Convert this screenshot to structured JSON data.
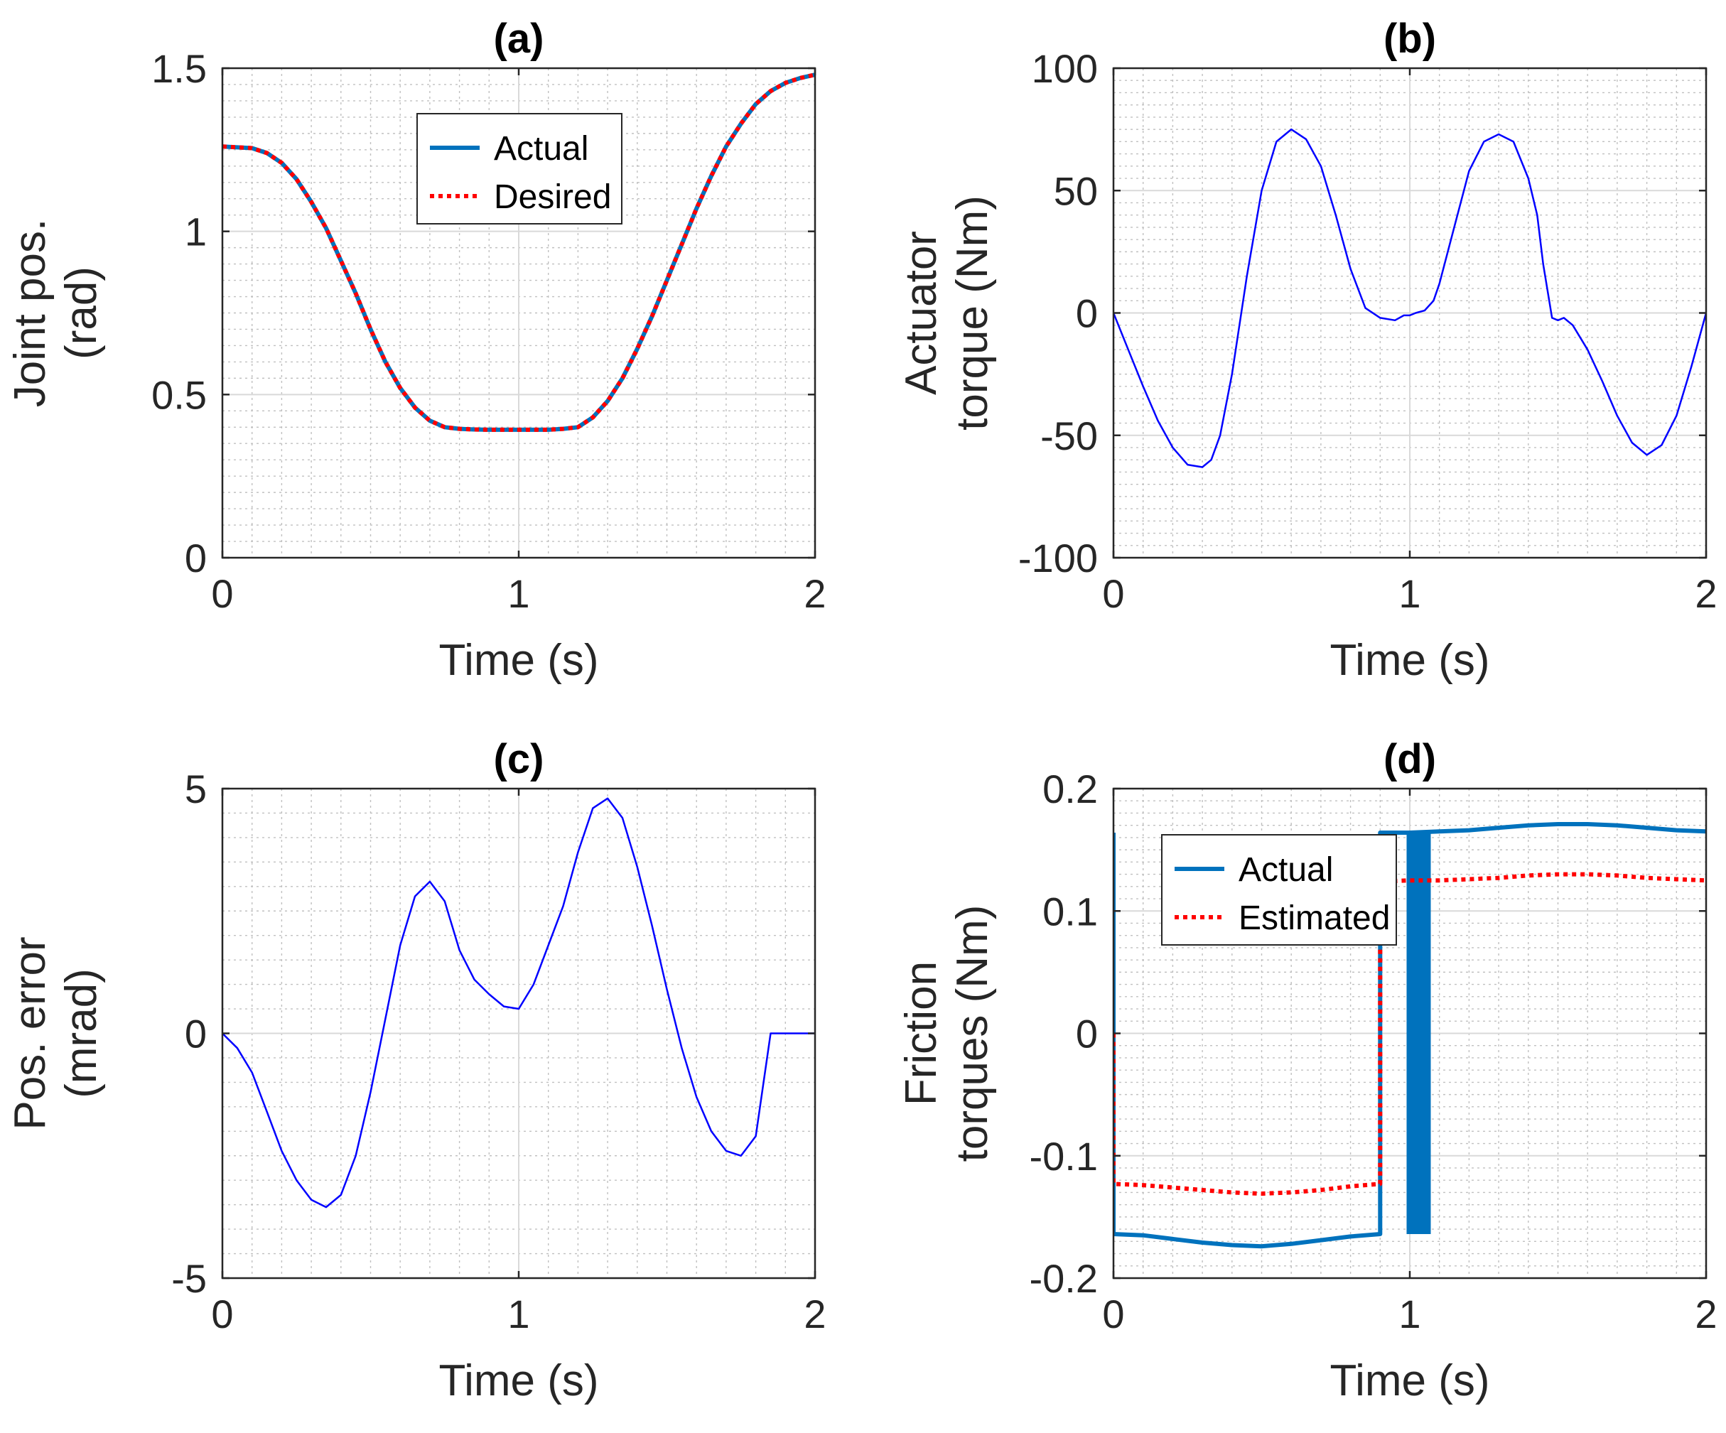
{
  "chart_data": [
    {
      "id": "a",
      "type": "line",
      "title": "(a)",
      "xlabel": "Time (s)",
      "ylabel": [
        "Joint pos.",
        "(rad)"
      ],
      "xlim": [
        0,
        2
      ],
      "ylim": [
        0,
        1.5
      ],
      "xticks": [
        0,
        1,
        2
      ],
      "xtick_labels": [
        "0",
        "1",
        "2"
      ],
      "yticks": [
        0,
        0.5,
        1,
        1.5
      ],
      "ytick_labels": [
        "0",
        "0.5",
        "1",
        "1.5"
      ],
      "grid": true,
      "legend": {
        "placement": "top-center",
        "entries": [
          "Actual",
          "Desired"
        ]
      },
      "series": [
        {
          "name": "Actual",
          "color": "#0072BD",
          "style": "solid",
          "width": 6,
          "x": [
            0,
            0.1,
            0.15,
            0.2,
            0.25,
            0.3,
            0.35,
            0.4,
            0.45,
            0.5,
            0.55,
            0.6,
            0.65,
            0.7,
            0.75,
            0.8,
            0.85,
            0.9,
            0.95,
            1.0,
            1.05,
            1.1,
            1.15,
            1.2,
            1.25,
            1.3,
            1.35,
            1.4,
            1.45,
            1.5,
            1.55,
            1.6,
            1.65,
            1.7,
            1.75,
            1.8,
            1.85,
            1.9,
            1.95,
            2.0
          ],
          "y": [
            1.26,
            1.255,
            1.24,
            1.21,
            1.16,
            1.09,
            1.01,
            0.91,
            0.81,
            0.7,
            0.6,
            0.52,
            0.46,
            0.42,
            0.4,
            0.395,
            0.393,
            0.392,
            0.392,
            0.392,
            0.392,
            0.392,
            0.395,
            0.4,
            0.43,
            0.48,
            0.55,
            0.64,
            0.74,
            0.85,
            0.96,
            1.07,
            1.17,
            1.26,
            1.33,
            1.39,
            1.43,
            1.455,
            1.47,
            1.48
          ]
        },
        {
          "name": "Desired",
          "color": "#FF0000",
          "style": "dotted",
          "width": 6,
          "x": [
            0,
            0.1,
            0.15,
            0.2,
            0.25,
            0.3,
            0.35,
            0.4,
            0.45,
            0.5,
            0.55,
            0.6,
            0.65,
            0.7,
            0.75,
            0.8,
            0.85,
            0.9,
            0.95,
            1.0,
            1.05,
            1.1,
            1.15,
            1.2,
            1.25,
            1.3,
            1.35,
            1.4,
            1.45,
            1.5,
            1.55,
            1.6,
            1.65,
            1.7,
            1.75,
            1.8,
            1.85,
            1.9,
            1.95,
            2.0
          ],
          "y": [
            1.26,
            1.255,
            1.24,
            1.21,
            1.16,
            1.09,
            1.01,
            0.91,
            0.81,
            0.7,
            0.6,
            0.52,
            0.46,
            0.42,
            0.4,
            0.395,
            0.393,
            0.392,
            0.392,
            0.392,
            0.392,
            0.392,
            0.395,
            0.4,
            0.43,
            0.48,
            0.55,
            0.64,
            0.74,
            0.85,
            0.96,
            1.07,
            1.17,
            1.26,
            1.33,
            1.39,
            1.43,
            1.455,
            1.47,
            1.48
          ]
        }
      ]
    },
    {
      "id": "b",
      "type": "line",
      "title": "(b)",
      "xlabel": "Time (s)",
      "ylabel": [
        "Actuator",
        "torque (Nm)"
      ],
      "xlim": [
        0,
        2
      ],
      "ylim": [
        -100,
        100
      ],
      "xticks": [
        0,
        1,
        2
      ],
      "xtick_labels": [
        "0",
        "1",
        "2"
      ],
      "yticks": [
        -100,
        -50,
        0,
        50,
        100
      ],
      "ytick_labels": [
        "-100",
        "-50",
        "0",
        "50",
        "100"
      ],
      "grid": true,
      "legend": null,
      "series": [
        {
          "color": "#0000FF",
          "style": "solid",
          "width": 2.5,
          "x": [
            0,
            0.05,
            0.1,
            0.15,
            0.2,
            0.25,
            0.3,
            0.33,
            0.36,
            0.4,
            0.45,
            0.5,
            0.55,
            0.6,
            0.65,
            0.7,
            0.75,
            0.8,
            0.85,
            0.9,
            0.95,
            0.98,
            1.0,
            1.02,
            1.05,
            1.08,
            1.1,
            1.15,
            1.2,
            1.25,
            1.3,
            1.35,
            1.4,
            1.43,
            1.45,
            1.48,
            1.5,
            1.52,
            1.55,
            1.6,
            1.65,
            1.7,
            1.75,
            1.8,
            1.85,
            1.9,
            1.95,
            2.0
          ],
          "y": [
            0,
            -15,
            -30,
            -44,
            -55,
            -62,
            -63,
            -60,
            -50,
            -25,
            15,
            50,
            70,
            75,
            71,
            60,
            40,
            18,
            2,
            -2,
            -3,
            -1,
            -1,
            0,
            1,
            5,
            12,
            35,
            58,
            70,
            73,
            70,
            55,
            40,
            20,
            -2,
            -3,
            -2,
            -5,
            -15,
            -28,
            -42,
            -53,
            -58,
            -54,
            -42,
            -22,
            0
          ]
        }
      ]
    },
    {
      "id": "c",
      "type": "line",
      "title": "(c)",
      "xlabel": "Time (s)",
      "ylabel": [
        "Pos. error",
        "(mrad)"
      ],
      "xlim": [
        0,
        2
      ],
      "ylim": [
        -5,
        5
      ],
      "xticks": [
        0,
        1,
        2
      ],
      "xtick_labels": [
        "0",
        "1",
        "2"
      ],
      "yticks": [
        -5,
        0,
        5
      ],
      "ytick_labels": [
        "-5",
        "0",
        "5"
      ],
      "grid": true,
      "legend": null,
      "series": [
        {
          "color": "#0000FF",
          "style": "solid",
          "width": 2.5,
          "x": [
            0,
            0.05,
            0.1,
            0.15,
            0.2,
            0.25,
            0.3,
            0.35,
            0.4,
            0.45,
            0.5,
            0.55,
            0.6,
            0.65,
            0.7,
            0.75,
            0.8,
            0.85,
            0.9,
            0.95,
            1.0,
            1.05,
            1.1,
            1.15,
            1.2,
            1.25,
            1.3,
            1.35,
            1.4,
            1.45,
            1.5,
            1.55,
            1.6,
            1.65,
            1.7,
            1.75,
            1.8,
            1.85,
            1.9,
            1.95,
            2.0
          ],
          "y": [
            0,
            -0.3,
            -0.8,
            -1.6,
            -2.4,
            -3.0,
            -3.4,
            -3.55,
            -3.3,
            -2.5,
            -1.2,
            0.3,
            1.8,
            2.8,
            3.1,
            2.7,
            1.7,
            1.1,
            0.8,
            0.55,
            0.5,
            1.0,
            1.8,
            2.6,
            3.7,
            4.6,
            4.8,
            4.4,
            3.4,
            2.2,
            0.9,
            -0.3,
            -1.3,
            -2.0,
            -2.4,
            -2.5,
            -2.1,
            0,
            0,
            0,
            0
          ]
        }
      ]
    },
    {
      "id": "d",
      "type": "line",
      "title": "(d)",
      "xlabel": "Time (s)",
      "ylabel": [
        "Friction",
        "torques (Nm)"
      ],
      "xlim": [
        0,
        2
      ],
      "ylim": [
        -0.2,
        0.2
      ],
      "xticks": [
        0,
        1,
        2
      ],
      "xtick_labels": [
        "0",
        "1",
        "2"
      ],
      "yticks": [
        -0.2,
        -0.1,
        0,
        0.1,
        0.2
      ],
      "ytick_labels": [
        "-0.2",
        "-0.1",
        "0",
        "0.1",
        "0.2"
      ],
      "grid": true,
      "legend": {
        "placement": "top-left",
        "entries": [
          "Actual",
          "Estimated"
        ]
      },
      "series": [
        {
          "name": "Actual",
          "color": "#0072BD",
          "style": "solid",
          "width": 6,
          "x": [
            0,
            0,
            0.1,
            0.2,
            0.3,
            0.4,
            0.5,
            0.6,
            0.7,
            0.8,
            0.9,
            0.9,
            1.0,
            1.1,
            1.2,
            1.3,
            1.4,
            1.5,
            1.6,
            1.7,
            1.8,
            1.9,
            2.0
          ],
          "y": [
            0.164,
            -0.164,
            -0.165,
            -0.168,
            -0.171,
            -0.173,
            -0.174,
            -0.172,
            -0.169,
            -0.166,
            -0.164,
            0.164,
            0.164,
            0.165,
            0.166,
            0.168,
            0.17,
            0.171,
            0.171,
            0.17,
            0.168,
            0.166,
            0.165
          ]
        },
        {
          "name": "Actual",
          "color": "#0072BD",
          "style": "solid",
          "width": 6,
          "x": [
            1.0,
            1.0
          ],
          "y": [
            0.164,
            -0.164
          ]
        },
        {
          "name": "Actual",
          "color": "#0072BD",
          "style": "solid",
          "width": 34,
          "x": [
            1.03,
            1.03
          ],
          "y": [
            0.164,
            -0.164
          ]
        },
        {
          "name": "Estimated",
          "color": "#FF0000",
          "style": "dotted",
          "width": 6,
          "x": [
            0,
            0,
            0.1,
            0.2,
            0.3,
            0.4,
            0.5,
            0.6,
            0.7,
            0.8,
            0.9,
            0.9,
            1.0,
            1.1,
            1.2,
            1.3,
            1.4,
            1.5,
            1.6,
            1.7,
            1.8,
            1.9,
            2.0
          ],
          "y": [
            0,
            -0.123,
            -0.124,
            -0.126,
            -0.128,
            -0.13,
            -0.131,
            -0.13,
            -0.128,
            -0.125,
            -0.123,
            0.124,
            0.125,
            0.125,
            0.126,
            0.127,
            0.129,
            0.13,
            0.13,
            0.129,
            0.127,
            0.126,
            0.125
          ]
        }
      ]
    }
  ]
}
